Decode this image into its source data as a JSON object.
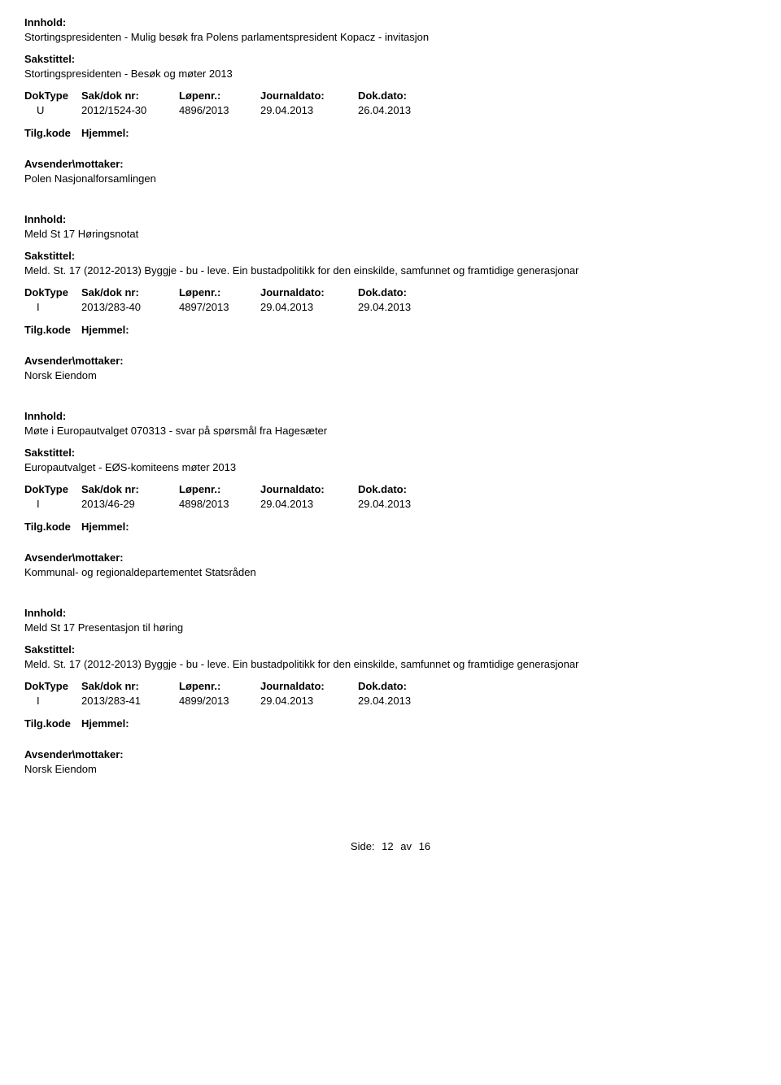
{
  "labels": {
    "innhold": "Innhold:",
    "sakstittel": "Sakstittel:",
    "doktype": "DokType",
    "sakdoknr": "Sak/dok nr:",
    "lopenr": "Løpenr.:",
    "journaldato": "Journaldato:",
    "dokdato": "Dok.dato:",
    "tilgkode": "Tilg.kode",
    "hjemmel": "Hjemmel:",
    "avsender": "Avsender\\mottaker:"
  },
  "records": [
    {
      "innhold": "Stortingspresidenten - Mulig besøk fra Polens parlamentspresident Kopacz - invitasjon",
      "sakstittel": "Stortingspresidenten - Besøk og møter 2013",
      "doktype": "U",
      "sakdoknr": "2012/1524-30",
      "lopenr": "4896/2013",
      "journaldato": "29.04.2013",
      "dokdato": "26.04.2013",
      "avsender": "Polen Nasjonalforsamlingen"
    },
    {
      "innhold": "Meld St 17 Høringsnotat",
      "sakstittel": "Meld. St. 17 (2012-2013) Byggje - bu - leve. Ein bustadpolitikk for den einskilde, samfunnet og framtidige generasjonar",
      "doktype": "I",
      "sakdoknr": "2013/283-40",
      "lopenr": "4897/2013",
      "journaldato": "29.04.2013",
      "dokdato": "29.04.2013",
      "avsender": "Norsk Eiendom"
    },
    {
      "innhold": "Møte i Europautvalget 070313 - svar på spørsmål fra Hagesæter",
      "sakstittel": "Europautvalget - EØS-komiteens møter 2013",
      "doktype": "I",
      "sakdoknr": "2013/46-29",
      "lopenr": "4898/2013",
      "journaldato": "29.04.2013",
      "dokdato": "29.04.2013",
      "avsender": "Kommunal- og regionaldepartementet Statsråden"
    },
    {
      "innhold": "Meld St 17 Presentasjon til høring",
      "sakstittel": "Meld. St. 17 (2012-2013) Byggje - bu - leve. Ein bustadpolitikk for den einskilde, samfunnet og framtidige generasjonar",
      "doktype": "I",
      "sakdoknr": "2013/283-41",
      "lopenr": "4899/2013",
      "journaldato": "29.04.2013",
      "dokdato": "29.04.2013",
      "avsender": "Norsk Eiendom"
    }
  ],
  "footer": {
    "label": "Side:",
    "current": "12",
    "separator": "av",
    "total": "16"
  }
}
